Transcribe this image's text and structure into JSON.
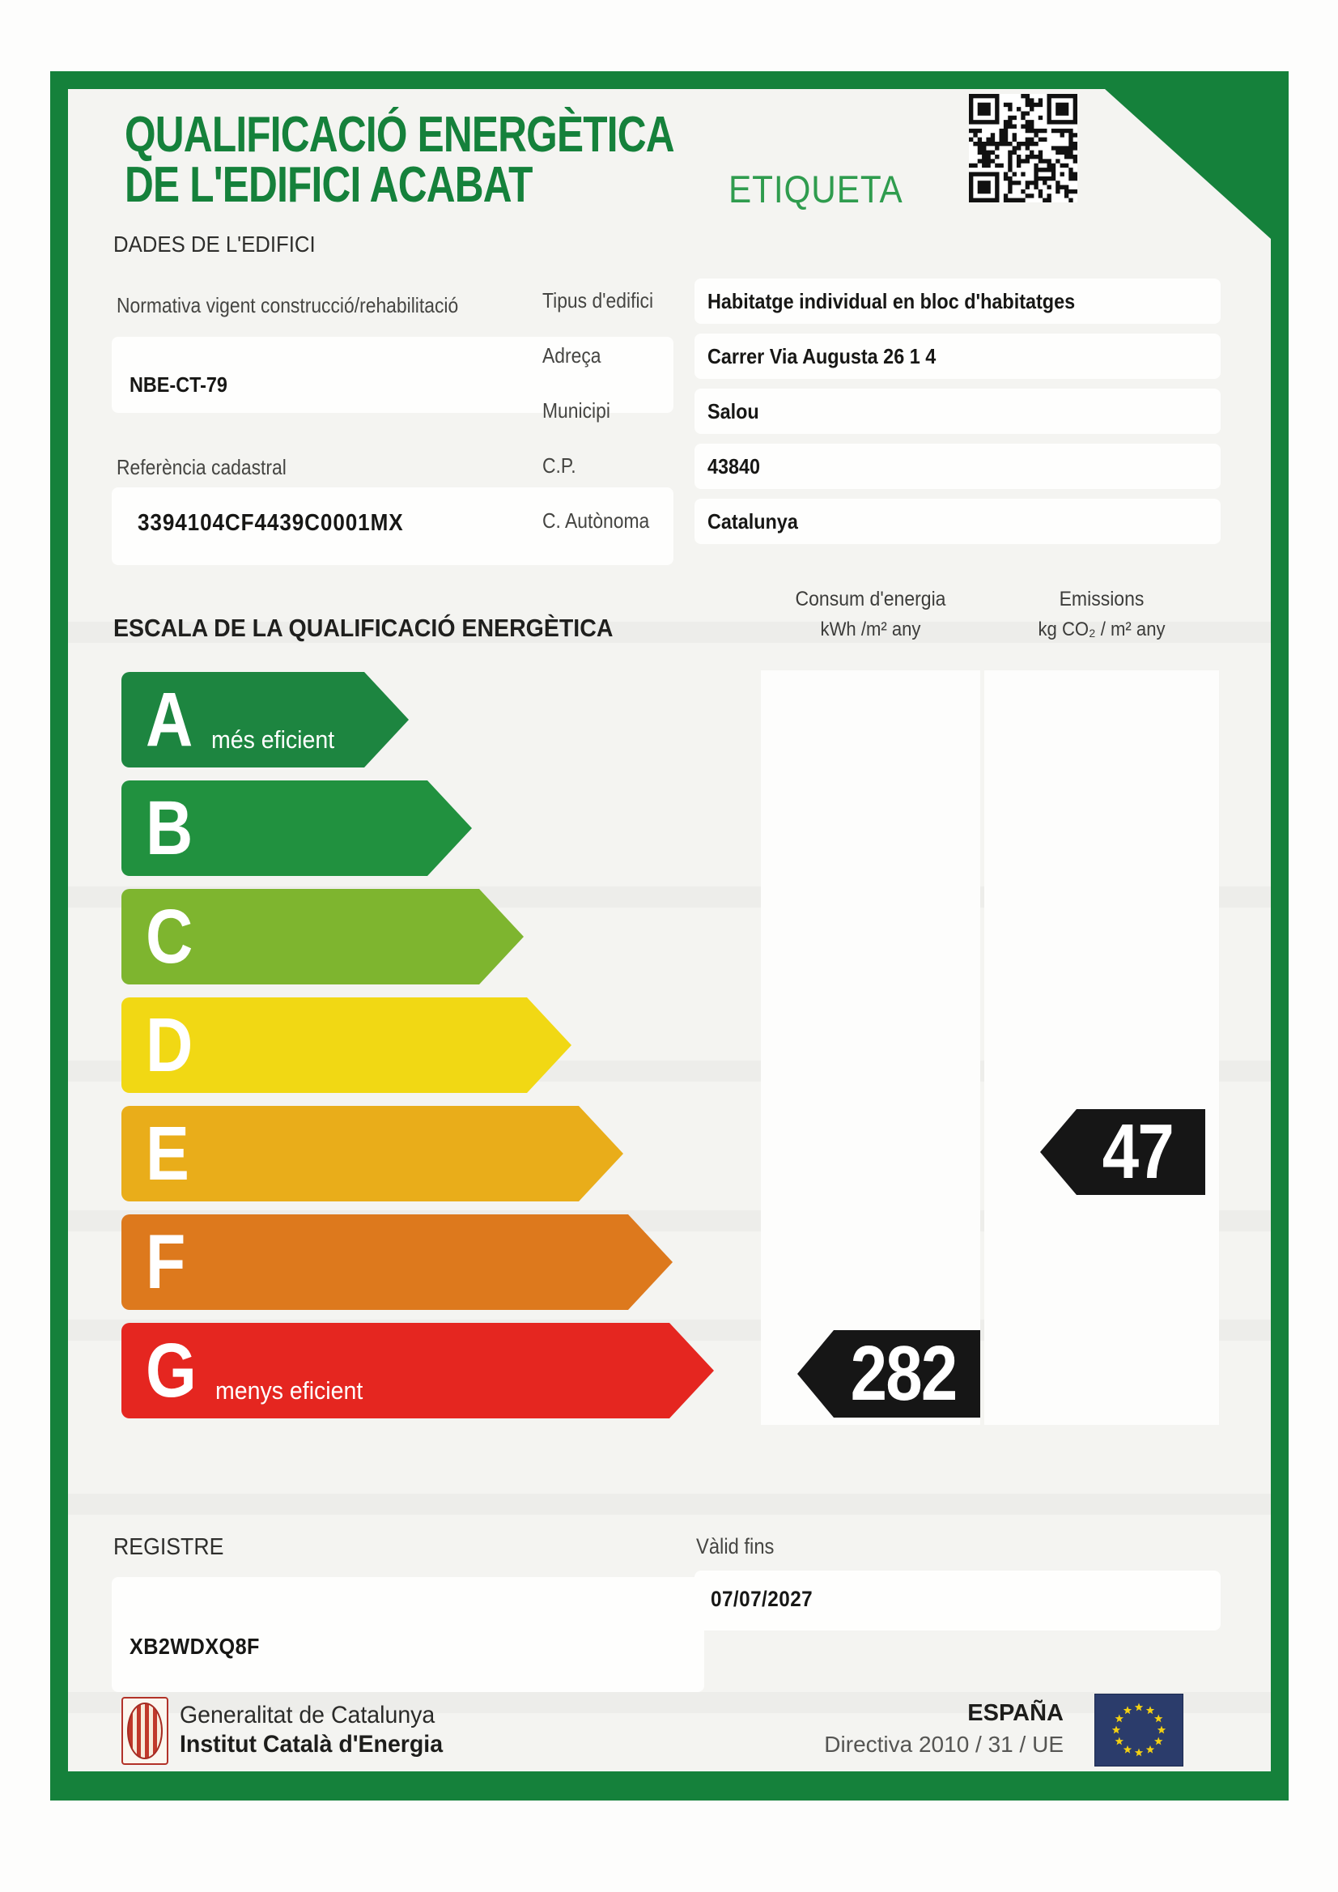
{
  "header": {
    "title_line1": "QUALIFICACIÓ ENERGÈTICA",
    "title_line2": "DE L'EDIFICI ACABAT",
    "etiqueta_label": "ETIQUETA"
  },
  "building": {
    "section_title": "DADES DE L'EDIFICI",
    "normativa_label": "Normativa vigent construcció/rehabilitació",
    "normativa_value": "NBE-CT-79",
    "cadastral_label": "Referència cadastral",
    "cadastral_value": "3394104CF4439C0001MX",
    "fields": [
      {
        "label": "Tipus d'edifici",
        "value": "Habitatge individual en bloc d'habitatges"
      },
      {
        "label": "Adreça",
        "value": "Carrer Via Augusta 26 1 4"
      },
      {
        "label": "Municipi",
        "value": "Salou"
      },
      {
        "label": "C.P.",
        "value": "43840"
      },
      {
        "label": "C. Autònoma",
        "value": "Catalunya"
      }
    ]
  },
  "scale": {
    "section_title": "ESCALA DE LA QUALIFICACIÓ ENERGÈTICA",
    "consumption_header_line1": "Consum d'energia",
    "consumption_header_line2": "kWh /m² any",
    "emissions_header_line1": "Emissions",
    "emissions_header_line2": "kg CO₂ / m² any",
    "ratings": [
      {
        "letter": "A",
        "caption": "més eficient",
        "color": "#1d8540"
      },
      {
        "letter": "B",
        "caption": "",
        "color": "#21913f"
      },
      {
        "letter": "C",
        "caption": "",
        "color": "#7eb52f"
      },
      {
        "letter": "D",
        "caption": "",
        "color": "#f1d814"
      },
      {
        "letter": "E",
        "caption": "",
        "color": "#e9ad1a"
      },
      {
        "letter": "F",
        "caption": "",
        "color": "#dd791d"
      },
      {
        "letter": "G",
        "caption": "menys eficient",
        "color": "#e52620"
      }
    ],
    "consumption_value": "282",
    "consumption_rating_row": "G",
    "emissions_value": "47",
    "emissions_rating_row": "E"
  },
  "registry": {
    "registre_label": "REGISTRE",
    "registre_value": "XB2WDXQ8F",
    "valid_label": "Vàlid fins",
    "valid_value": "07/07/2027"
  },
  "footer": {
    "org_line1": "Generalitat de Catalunya",
    "org_line2": "Institut Català d'Energia",
    "country": "ESPAÑA",
    "directive": "Directiva 2010 / 31 / UE"
  },
  "colors": {
    "frame_green": "#15813b",
    "title_green": "#15813b",
    "etiqueta_green": "#2f9c4e",
    "badge_black": "#161616",
    "eu_flag_blue": "#2b3c6b",
    "eu_star_yellow": "#f3d012",
    "logo_red": "#c0392b"
  }
}
